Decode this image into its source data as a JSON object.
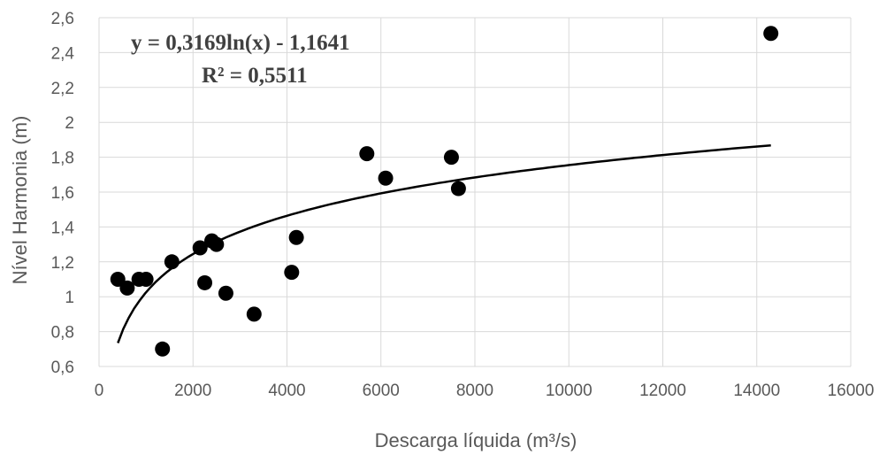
{
  "chart_data": {
    "type": "scatter",
    "title": "",
    "xlabel": "Descarga líquida (m³/s)",
    "ylabel": "Nível Harmonia (m)",
    "xlim": [
      0,
      16000
    ],
    "ylim": [
      0.6,
      2.6
    ],
    "x_ticks": [
      "0",
      "2000",
      "4000",
      "6000",
      "8000",
      "10000",
      "12000",
      "14000",
      "16000"
    ],
    "y_ticks": [
      "0,6",
      "0,8",
      "1",
      "1,2",
      "1,4",
      "1,6",
      "1,8",
      "2",
      "2,2",
      "2,4",
      "2,6"
    ],
    "grid": true,
    "series": [
      {
        "marker_color": "#000000",
        "points": [
          {
            "x": 400,
            "y": 1.1
          },
          {
            "x": 600,
            "y": 1.05
          },
          {
            "x": 850,
            "y": 1.1
          },
          {
            "x": 1000,
            "y": 1.1
          },
          {
            "x": 1350,
            "y": 0.7
          },
          {
            "x": 1550,
            "y": 1.2
          },
          {
            "x": 2150,
            "y": 1.28
          },
          {
            "x": 2250,
            "y": 1.08
          },
          {
            "x": 2400,
            "y": 1.32
          },
          {
            "x": 2500,
            "y": 1.3
          },
          {
            "x": 2700,
            "y": 1.02
          },
          {
            "x": 3300,
            "y": 0.9
          },
          {
            "x": 4100,
            "y": 1.14
          },
          {
            "x": 4200,
            "y": 1.34
          },
          {
            "x": 5700,
            "y": 1.82
          },
          {
            "x": 6100,
            "y": 1.68
          },
          {
            "x": 7500,
            "y": 1.8
          },
          {
            "x": 7650,
            "y": 1.62
          },
          {
            "x": 14300,
            "y": 2.51
          }
        ]
      }
    ],
    "trendline": {
      "type": "logarithmic",
      "a": 0.3169,
      "b": -1.1641,
      "x_range": [
        400,
        14300
      ],
      "color": "#000000"
    },
    "annotations": {
      "equation": "y = 0,3169ln(x) - 1,1641",
      "r_squared": "R² = 0,5511"
    }
  }
}
